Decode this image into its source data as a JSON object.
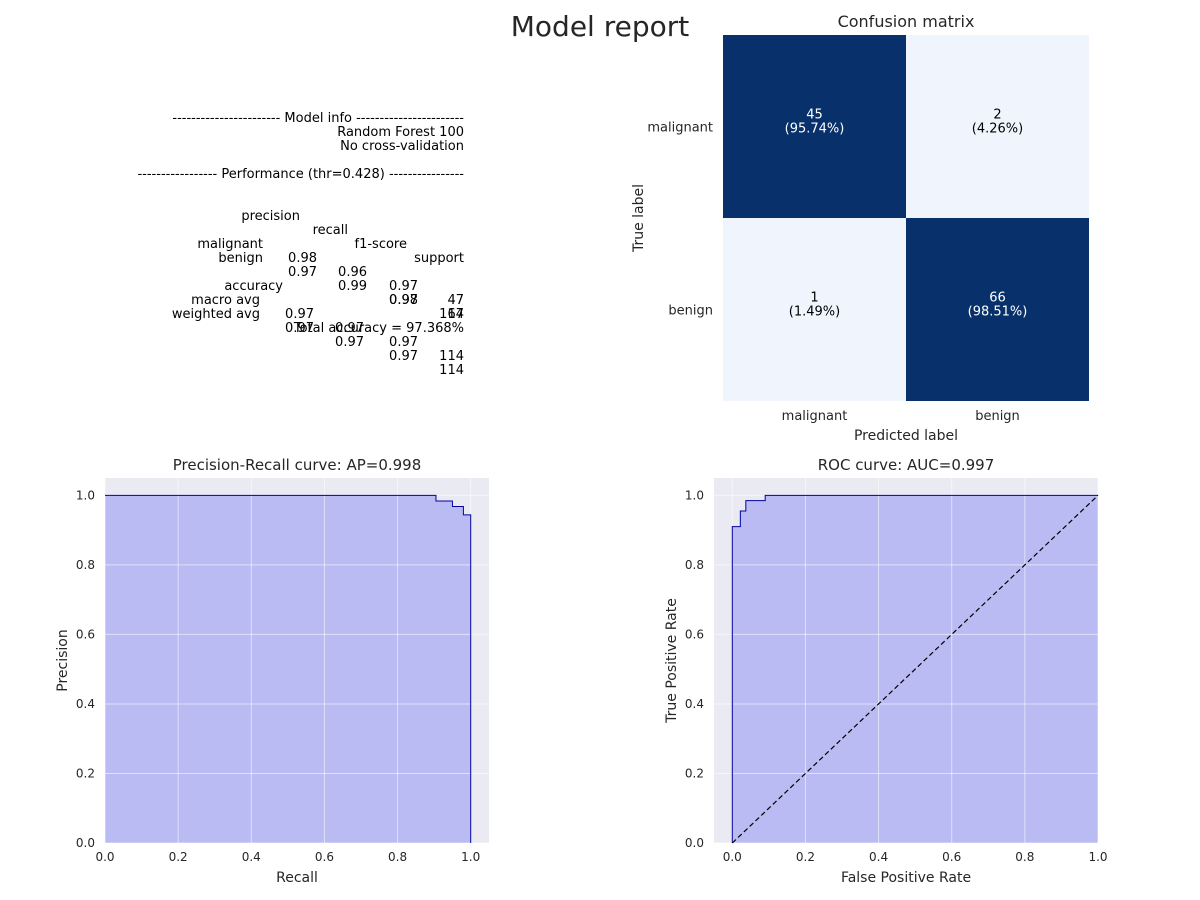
{
  "title": "Model report",
  "report": {
    "model_info_header": "----------------------- Model info -----------------------",
    "model_name": "Random Forest 100",
    "cv": "No cross-validation",
    "performance_header": "----------------- Performance (thr=0.428) ----------------",
    "columns": [
      "precision",
      "recall",
      "f1-score",
      "support"
    ],
    "rows": [
      {
        "label": "malignant",
        "values": [
          "0.98",
          "0.96",
          "0.97",
          "47"
        ]
      },
      {
        "label": "benign",
        "values": [
          "0.97",
          "0.99",
          "0.98",
          "67"
        ]
      }
    ],
    "accuracy_row": {
      "label": "accuracy",
      "f1": "0.97",
      "support": "114"
    },
    "avg_rows": [
      {
        "label": "macro avg",
        "values": [
          "0.97",
          "0.97",
          "0.97",
          "114"
        ]
      },
      {
        "label": "weighted avg",
        "values": [
          "0.97",
          "0.97",
          "0.97",
          "114"
        ]
      }
    ],
    "total_accuracy": "Total accuracy = 97.368%"
  },
  "chart_data": [
    {
      "type": "heatmap",
      "title": "Confusion matrix",
      "xlabel": "Predicted label",
      "ylabel": "True label",
      "x_categories": [
        "malignant",
        "benign"
      ],
      "y_categories": [
        "malignant",
        "benign"
      ],
      "cells": [
        [
          {
            "count": "45",
            "pct": "(95.74%)",
            "value": 45
          },
          {
            "count": "2",
            "pct": "(4.26%)",
            "value": 2
          }
        ],
        [
          {
            "count": "1",
            "pct": "(1.49%)",
            "value": 1
          },
          {
            "count": "66",
            "pct": "(98.51%)",
            "value": 66
          }
        ]
      ],
      "colors": {
        "high": "#08306b",
        "low": "#f0f5fd",
        "text_dark": "#ffffff",
        "text_light": "#000000"
      }
    },
    {
      "type": "area",
      "title": "Precision-Recall curve: AP=0.998",
      "xlabel": "Recall",
      "ylabel": "Precision",
      "xlim": [
        0,
        1.05
      ],
      "ylim": [
        0,
        1.05
      ],
      "xticks": [
        "0.0",
        "0.2",
        "0.4",
        "0.6",
        "0.8",
        "1.0"
      ],
      "yticks": [
        "0.0",
        "0.2",
        "0.4",
        "0.6",
        "0.8",
        "1.0"
      ],
      "grid": true,
      "x": [
        0.0,
        0.905,
        0.905,
        0.95,
        0.95,
        0.98,
        0.98,
        1.0,
        1.0
      ],
      "y": [
        1.0,
        1.0,
        0.984,
        0.984,
        0.968,
        0.968,
        0.944,
        0.944,
        0.0
      ],
      "colors": {
        "line": "#0000a0",
        "fill": "#b9bbf2",
        "bg": "#eaeaf2"
      }
    },
    {
      "type": "area",
      "title": "ROC curve: AUC=0.997",
      "xlabel": "False Positive Rate",
      "ylabel": "True Positive Rate",
      "xlim": [
        -0.05,
        1.0
      ],
      "ylim": [
        0,
        1.05
      ],
      "xticks": [
        "0.0",
        "0.2",
        "0.4",
        "0.6",
        "0.8",
        "1.0"
      ],
      "yticks": [
        "0.0",
        "0.2",
        "0.4",
        "0.6",
        "0.8",
        "1.0"
      ],
      "grid": true,
      "x": [
        0.0,
        0.0,
        0.022,
        0.022,
        0.037,
        0.037,
        0.06,
        0.06,
        0.09,
        0.09,
        1.0
      ],
      "y": [
        0.0,
        0.91,
        0.91,
        0.955,
        0.955,
        0.985,
        0.985,
        0.985,
        0.985,
        1.0,
        1.0
      ],
      "diagonal": {
        "x": [
          0,
          1
        ],
        "y": [
          0,
          1
        ],
        "style": "dashed"
      },
      "colors": {
        "line": "#0000a0",
        "fill": "#b9bbf2",
        "bg": "#eaeaf2"
      }
    }
  ]
}
